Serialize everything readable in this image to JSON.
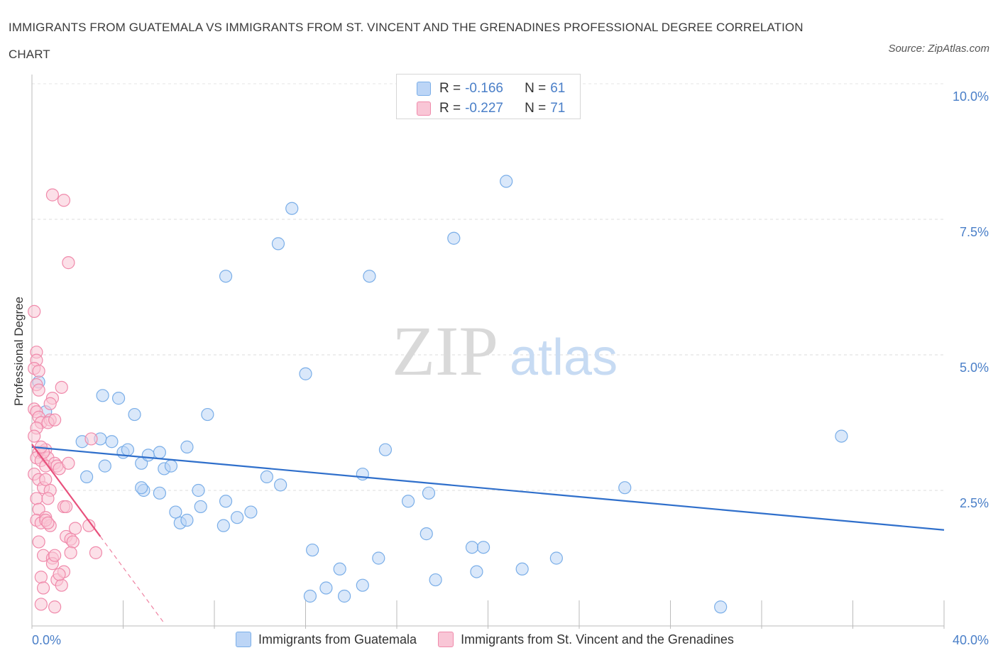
{
  "title": "IMMIGRANTS FROM GUATEMALA VS IMMIGRANTS FROM ST. VINCENT AND THE GRENADINES PROFESSIONAL DEGREE CORRELATION CHART",
  "source": "Source: ZipAtlas.com",
  "watermark": {
    "zip": "ZIP",
    "atlas": "atlas"
  },
  "legend": {
    "rows": [
      {
        "r_label": "R =",
        "r_value": "-0.166",
        "n_label": "N =",
        "n_value": "61",
        "color": "#7aaee8",
        "fill": "#bcd5f6"
      },
      {
        "r_label": "R =",
        "r_value": "-0.227",
        "n_label": "N =",
        "n_value": "71",
        "color": "#f08aab",
        "fill": "#f9c6d6"
      }
    ]
  },
  "bottom_legend": [
    "Immigrants from Guatemala",
    "Immigrants from St. Vincent and the Grenadines"
  ],
  "chart_data": {
    "type": "scatter",
    "xlabel": "",
    "ylabel": "Professional Degree",
    "xlim": [
      0,
      40
    ],
    "ylim": [
      0,
      10
    ],
    "x_tick_labels": [
      "0.0%",
      "40.0%"
    ],
    "y_tick_labels": [
      "2.5%",
      "5.0%",
      "7.5%",
      "10.0%"
    ],
    "y_ticks": [
      2.5,
      5.0,
      7.5,
      10.0
    ],
    "grid": true,
    "series": [
      {
        "name": "Immigrants from Guatemala",
        "color": "#7aaee8",
        "fill": "#bcd5f6",
        "line_color": "#2f6fcb",
        "trend": {
          "x": [
            0.0,
            40.0
          ],
          "y": [
            3.3,
            1.77
          ]
        },
        "points": [
          [
            2.2,
            3.4
          ],
          [
            2.4,
            2.75
          ],
          [
            3.2,
            2.95
          ],
          [
            3.0,
            3.45
          ],
          [
            3.5,
            3.4
          ],
          [
            4.0,
            3.2
          ],
          [
            4.2,
            3.25
          ],
          [
            3.1,
            4.25
          ],
          [
            3.8,
            4.2
          ],
          [
            4.5,
            3.9
          ],
          [
            4.9,
            2.5
          ],
          [
            5.6,
            2.45
          ],
          [
            4.8,
            2.55
          ],
          [
            6.3,
            2.1
          ],
          [
            6.5,
            1.9
          ],
          [
            6.8,
            1.95
          ],
          [
            5.6,
            3.2
          ],
          [
            4.8,
            3.0
          ],
          [
            5.1,
            3.15
          ],
          [
            5.8,
            2.9
          ],
          [
            6.1,
            2.95
          ],
          [
            6.8,
            3.3
          ],
          [
            7.3,
            2.5
          ],
          [
            7.4,
            2.2
          ],
          [
            7.7,
            3.9
          ],
          [
            8.4,
            1.85
          ],
          [
            8.5,
            6.45
          ],
          [
            8.5,
            2.3
          ],
          [
            9.0,
            2.0
          ],
          [
            9.6,
            2.1
          ],
          [
            10.3,
            2.75
          ],
          [
            10.8,
            7.05
          ],
          [
            10.9,
            2.6
          ],
          [
            11.4,
            7.7
          ],
          [
            12.0,
            4.65
          ],
          [
            12.2,
            0.55
          ],
          [
            12.3,
            1.4
          ],
          [
            12.9,
            0.7
          ],
          [
            13.5,
            1.05
          ],
          [
            13.7,
            0.55
          ],
          [
            14.5,
            2.8
          ],
          [
            14.5,
            0.75
          ],
          [
            14.8,
            6.45
          ],
          [
            15.2,
            1.25
          ],
          [
            15.5,
            3.25
          ],
          [
            16.5,
            2.3
          ],
          [
            17.3,
            1.7
          ],
          [
            17.4,
            2.45
          ],
          [
            17.7,
            0.85
          ],
          [
            18.5,
            7.15
          ],
          [
            19.3,
            1.45
          ],
          [
            19.5,
            1.0
          ],
          [
            19.8,
            1.45
          ],
          [
            20.8,
            8.2
          ],
          [
            21.5,
            1.05
          ],
          [
            23.0,
            1.25
          ],
          [
            26.0,
            2.55
          ],
          [
            30.2,
            0.35
          ],
          [
            35.5,
            3.5
          ],
          [
            0.3,
            4.5
          ],
          [
            0.6,
            3.95
          ]
        ]
      },
      {
        "name": "Immigrants from St. Vincent and the Grenadines",
        "color": "#f08aab",
        "fill": "#f9c6d6",
        "line_color": "#e8507c",
        "trend": {
          "x": [
            0.0,
            3.0
          ],
          "y": [
            3.35,
            1.65
          ]
        },
        "trend_dashed": {
          "x": [
            3.0,
            5.8
          ],
          "y": [
            1.65,
            0.05
          ]
        },
        "points": [
          [
            0.1,
            5.8
          ],
          [
            0.2,
            5.05
          ],
          [
            0.2,
            4.9
          ],
          [
            0.1,
            4.75
          ],
          [
            0.3,
            4.7
          ],
          [
            0.2,
            4.45
          ],
          [
            0.3,
            4.35
          ],
          [
            0.1,
            4.0
          ],
          [
            0.2,
            3.95
          ],
          [
            0.3,
            3.85
          ],
          [
            0.4,
            3.75
          ],
          [
            0.2,
            3.65
          ],
          [
            0.1,
            3.5
          ],
          [
            0.3,
            3.2
          ],
          [
            0.2,
            3.1
          ],
          [
            0.4,
            3.05
          ],
          [
            0.1,
            2.8
          ],
          [
            0.3,
            2.7
          ],
          [
            0.5,
            2.55
          ],
          [
            0.2,
            2.35
          ],
          [
            0.3,
            2.15
          ],
          [
            0.2,
            1.95
          ],
          [
            0.4,
            1.9
          ],
          [
            0.3,
            1.55
          ],
          [
            0.5,
            1.3
          ],
          [
            0.4,
            0.9
          ],
          [
            0.5,
            0.7
          ],
          [
            0.4,
            0.4
          ],
          [
            0.8,
            3.8
          ],
          [
            0.7,
            3.75
          ],
          [
            0.6,
            3.25
          ],
          [
            0.7,
            3.1
          ],
          [
            0.6,
            2.95
          ],
          [
            0.6,
            2.7
          ],
          [
            0.8,
            2.5
          ],
          [
            0.7,
            2.35
          ],
          [
            0.6,
            2.0
          ],
          [
            0.8,
            1.85
          ],
          [
            0.9,
            1.25
          ],
          [
            0.9,
            1.15
          ],
          [
            1.0,
            3.8
          ],
          [
            1.0,
            3.0
          ],
          [
            0.9,
            4.2
          ],
          [
            0.8,
            4.1
          ],
          [
            1.1,
            2.95
          ],
          [
            1.2,
            2.9
          ],
          [
            1.0,
            1.3
          ],
          [
            1.1,
            0.85
          ],
          [
            1.0,
            0.35
          ],
          [
            0.9,
            7.95
          ],
          [
            1.4,
            7.85
          ],
          [
            1.6,
            6.7
          ],
          [
            1.3,
            4.4
          ],
          [
            1.4,
            2.2
          ],
          [
            1.5,
            2.2
          ],
          [
            1.5,
            1.65
          ],
          [
            1.4,
            1.0
          ],
          [
            1.3,
            0.75
          ],
          [
            1.6,
            3.0
          ],
          [
            1.7,
            1.6
          ],
          [
            1.8,
            1.55
          ],
          [
            1.7,
            1.35
          ],
          [
            1.9,
            1.8
          ],
          [
            2.5,
            1.85
          ],
          [
            2.6,
            3.45
          ],
          [
            2.8,
            1.35
          ],
          [
            0.6,
            1.95
          ],
          [
            0.7,
            1.9
          ],
          [
            1.2,
            0.95
          ],
          [
            0.5,
            3.2
          ],
          [
            0.4,
            3.3
          ]
        ]
      }
    ]
  }
}
